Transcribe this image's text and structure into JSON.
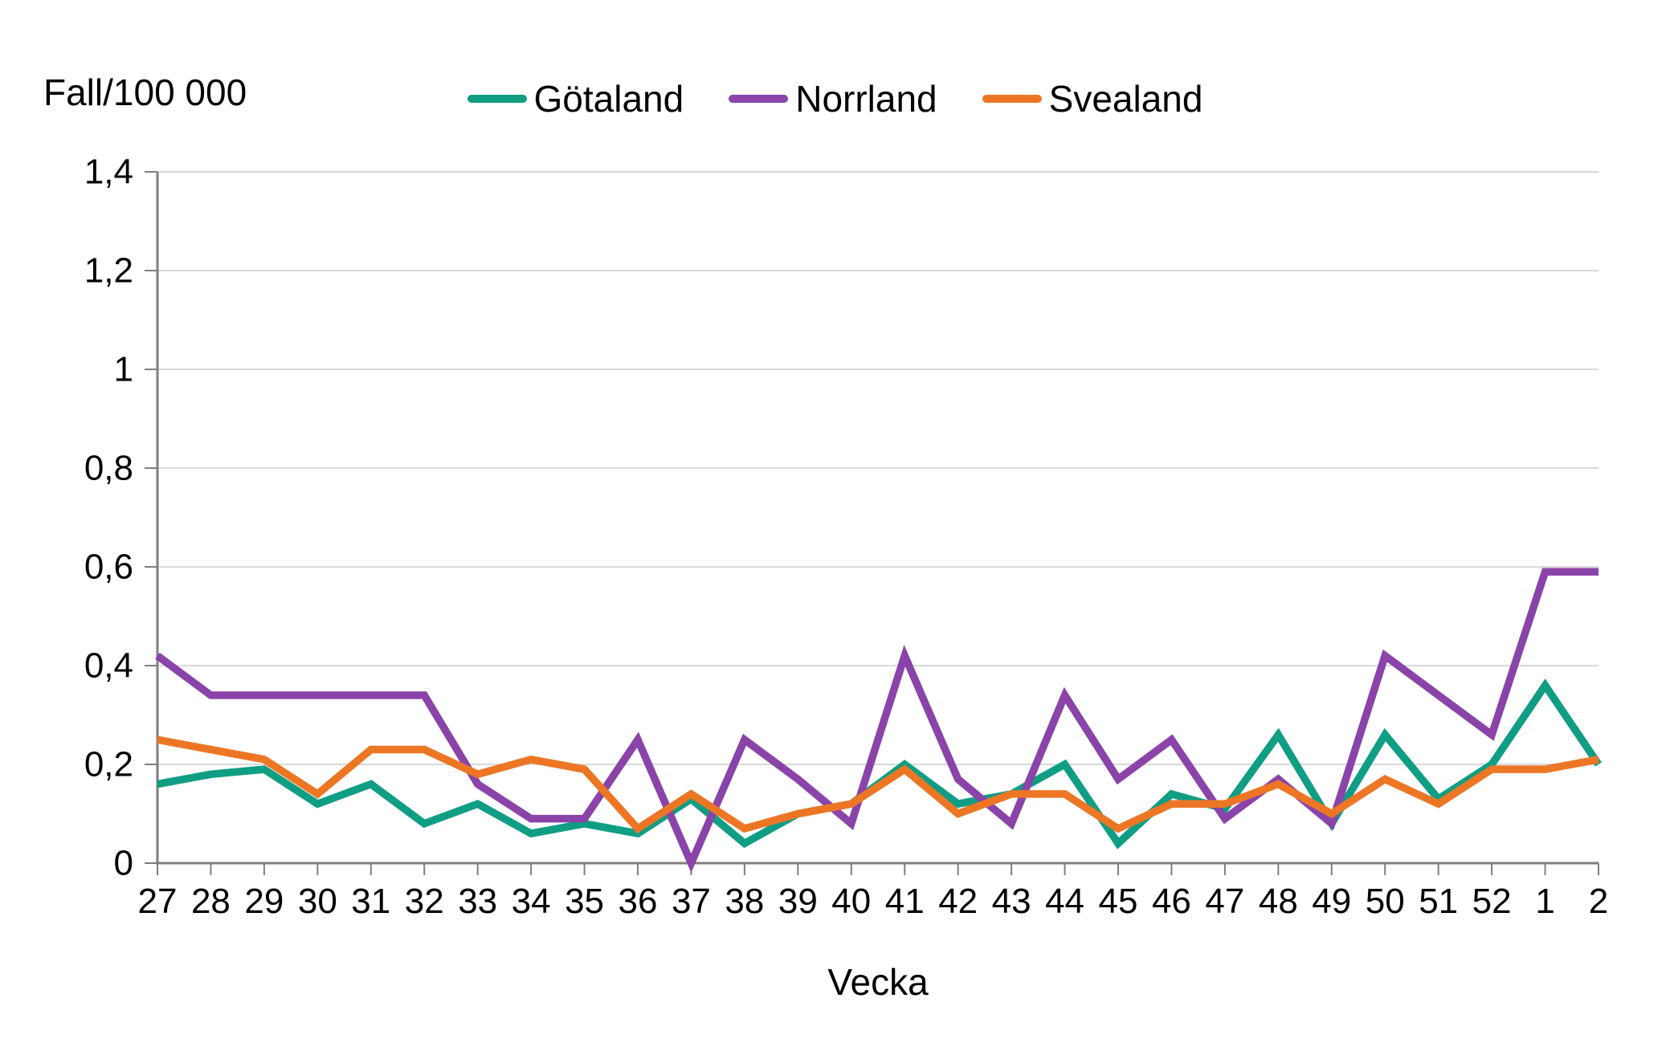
{
  "chart_data": {
    "type": "line",
    "title": "Fall/100 000",
    "xlabel": "Vecka",
    "ylim": [
      0,
      1.4
    ],
    "grid": "horizontal",
    "legend_position": "top-center",
    "background_color": "#FFFFFF",
    "axis_color": "#7F7F7F",
    "gridline_color": "#D9D9D9",
    "text_color": "#000000",
    "y_ticks": {
      "values": [
        0,
        0.2,
        0.4,
        0.6,
        0.8,
        1.0,
        1.2,
        1.4
      ],
      "labels": [
        "0",
        "0,2",
        "0,4",
        "0,6",
        "0,8",
        "1",
        "1,2",
        "1,4"
      ]
    },
    "categories": [
      "27",
      "28",
      "29",
      "30",
      "31",
      "32",
      "33",
      "34",
      "35",
      "36",
      "37",
      "38",
      "39",
      "40",
      "41",
      "42",
      "43",
      "44",
      "45",
      "46",
      "47",
      "48",
      "49",
      "50",
      "51",
      "52",
      "1",
      "2"
    ],
    "series": [
      {
        "name": "Götaland",
        "color": "#0F9E84",
        "values": [
          0.16,
          0.18,
          0.19,
          0.12,
          0.16,
          0.08,
          0.12,
          0.06,
          0.08,
          0.06,
          0.13,
          0.04,
          0.1,
          0.12,
          0.2,
          0.12,
          0.14,
          0.2,
          0.04,
          0.14,
          0.11,
          0.26,
          0.08,
          0.26,
          0.13,
          0.2,
          0.36,
          0.2
        ]
      },
      {
        "name": "Norrland",
        "color": "#8A43A8",
        "values": [
          0.42,
          0.34,
          0.34,
          0.34,
          0.34,
          0.34,
          0.16,
          0.09,
          0.09,
          0.25,
          0.0,
          0.25,
          0.17,
          0.08,
          0.42,
          0.17,
          0.08,
          0.34,
          0.17,
          0.25,
          0.09,
          0.17,
          0.08,
          0.42,
          0.34,
          0.26,
          0.59,
          0.59
        ]
      },
      {
        "name": "Svealand",
        "color": "#ED7625",
        "values": [
          0.25,
          0.23,
          0.21,
          0.14,
          0.23,
          0.23,
          0.18,
          0.21,
          0.19,
          0.07,
          0.14,
          0.07,
          0.1,
          0.12,
          0.19,
          0.1,
          0.14,
          0.14,
          0.07,
          0.12,
          0.12,
          0.16,
          0.1,
          0.17,
          0.12,
          0.19,
          0.19,
          0.21
        ]
      }
    ]
  }
}
